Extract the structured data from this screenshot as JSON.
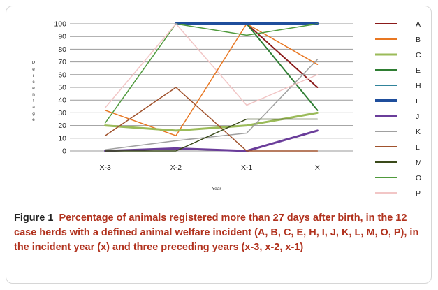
{
  "caption": {
    "label": "Figure 1",
    "text": "Percentage of animals registered more than 27 days after birth, in the 12 case herds with a defined animal welfare incident (A, B, C, E, H, I, J, K, L, M, O, P), in the incident year (x) and three preceding years (x-3, x-2, x-1)"
  },
  "chart_data": {
    "type": "line",
    "xlabel": "Year",
    "ylabel": "Percentage",
    "categories": [
      "X-3",
      "X-2",
      "X-1",
      "X"
    ],
    "ylim": [
      0,
      100
    ],
    "yticks": [
      0,
      10,
      20,
      30,
      40,
      50,
      60,
      70,
      80,
      90,
      100
    ],
    "grid": true,
    "legend": "right",
    "series": [
      {
        "name": "A",
        "color": "#8b1a1a",
        "width": 2.0,
        "values": [
          null,
          null,
          100,
          50
        ]
      },
      {
        "name": "B",
        "color": "#e87722",
        "width": 1.5,
        "values": [
          32,
          12,
          100,
          68
        ]
      },
      {
        "name": "C",
        "color": "#9bbb59",
        "width": 3.0,
        "values": [
          20,
          16,
          20,
          30
        ]
      },
      {
        "name": "E",
        "color": "#2e7d32",
        "width": 2.0,
        "values": [
          null,
          null,
          100,
          32
        ]
      },
      {
        "name": "H",
        "color": "#31849b",
        "width": 2.0,
        "values": [
          null,
          100,
          100,
          100
        ]
      },
      {
        "name": "I",
        "color": "#1f4e9c",
        "width": 4.0,
        "values": [
          null,
          100,
          100,
          100
        ]
      },
      {
        "name": "J",
        "color": "#6a3d9a",
        "width": 3.0,
        "values": [
          0,
          2,
          0,
          16
        ]
      },
      {
        "name": "K",
        "color": "#a0a0a0",
        "width": 1.5,
        "values": [
          1,
          8,
          14,
          72
        ]
      },
      {
        "name": "L",
        "color": "#a0522d",
        "width": 1.5,
        "values": [
          12,
          50,
          0,
          0
        ]
      },
      {
        "name": "M",
        "color": "#3a4a1a",
        "width": 1.5,
        "values": [
          0,
          0,
          25,
          25
        ]
      },
      {
        "name": "O",
        "color": "#4f9a3c",
        "width": 1.5,
        "values": [
          22,
          100,
          91,
          100
        ]
      },
      {
        "name": "P",
        "color": "#f2c6c6",
        "width": 1.5,
        "values": [
          34,
          100,
          36,
          60
        ]
      }
    ]
  }
}
